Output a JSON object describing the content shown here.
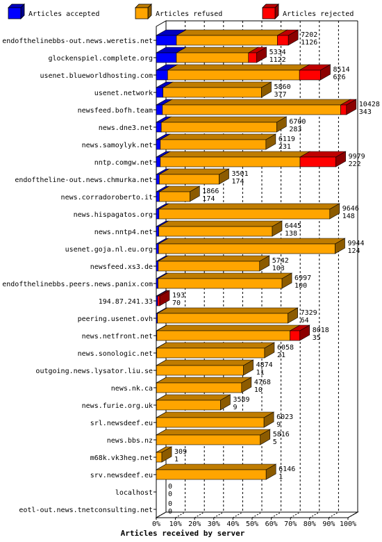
{
  "chart_data": {
    "type": "bar",
    "orientation": "horizontal",
    "stacked": true,
    "three_d": true,
    "xlabel": "Articles received by server",
    "xlim": [
      0,
      100
    ],
    "x_unit": "percent",
    "grid": "vertical dashed",
    "legend_position": "top",
    "x_ticks": [
      "0%",
      "10%",
      "20%",
      "30%",
      "40%",
      "50%",
      "60%",
      "70%",
      "80%",
      "90%",
      "100%"
    ],
    "series": [
      {
        "name": "Articles accepted",
        "color": "#0000ff"
      },
      {
        "name": "Articles refused",
        "color": "#ffa500"
      },
      {
        "name": "Articles rejected",
        "color": "#ff0000"
      }
    ],
    "rows": [
      {
        "server": "endofthelinebbs-out.news.weretis.net",
        "total": 7202,
        "accepted": 1126,
        "accepted_pct": 10.5,
        "refused_pct": 52.7,
        "rejected_pct": 5.7
      },
      {
        "server": "glockenspiel.complete.org",
        "total": 5334,
        "accepted": 1122,
        "accepted_pct": 10.5,
        "refused_pct": 37.6,
        "rejected_pct": 4.3
      },
      {
        "server": "usenet.blueworldhosting.com",
        "total": 8514,
        "accepted": 626,
        "accepted_pct": 5.9,
        "refused_pct": 68.8,
        "rejected_pct": 11.0
      },
      {
        "server": "usenet.network",
        "total": 5860,
        "accepted": 377,
        "accepted_pct": 3.5,
        "refused_pct": 51.4,
        "rejected_pct": 0
      },
      {
        "server": "newsfeed.bofh.team",
        "total": 10428,
        "accepted": 343,
        "accepted_pct": 3.2,
        "refused_pct": 93.0,
        "rejected_pct": 3.0
      },
      {
        "server": "news.dne3.net",
        "total": 6700,
        "accepted": 283,
        "accepted_pct": 2.6,
        "refused_pct": 60.2,
        "rejected_pct": 0
      },
      {
        "server": "news.samoylyk.net",
        "total": 6119,
        "accepted": 231,
        "accepted_pct": 2.1,
        "refused_pct": 55.1,
        "rejected_pct": 0
      },
      {
        "server": "nntp.comgw.net",
        "total": 9979,
        "accepted": 222,
        "accepted_pct": 2.1,
        "refused_pct": 72.9,
        "rejected_pct": 18.7
      },
      {
        "server": "endoftheline-out.news.chmurka.net",
        "total": 3501,
        "accepted": 174,
        "accepted_pct": 1.6,
        "refused_pct": 31.2,
        "rejected_pct": 0
      },
      {
        "server": "news.corradoroberto.it",
        "total": 1866,
        "accepted": 174,
        "accepted_pct": 1.6,
        "refused_pct": 15.9,
        "rejected_pct": 0
      },
      {
        "server": "news.hispagatos.org",
        "total": 9646,
        "accepted": 148,
        "accepted_pct": 1.4,
        "refused_pct": 89.1,
        "rejected_pct": 0
      },
      {
        "server": "news.nntp4.net",
        "total": 6445,
        "accepted": 138,
        "accepted_pct": 1.3,
        "refused_pct": 59.2,
        "rejected_pct": 0
      },
      {
        "server": "usenet.goja.nl.eu.org",
        "total": 9944,
        "accepted": 124,
        "accepted_pct": 1.2,
        "refused_pct": 92.1,
        "rejected_pct": 0
      },
      {
        "server": "newsfeed.xs3.de",
        "total": 5742,
        "accepted": 103,
        "accepted_pct": 1.0,
        "refused_pct": 52.9,
        "rejected_pct": 0
      },
      {
        "server": "endofthelinebbs.peers.news.panix.com",
        "total": 6997,
        "accepted": 100,
        "accepted_pct": 0.9,
        "refused_pct": 64.7,
        "rejected_pct": 0
      },
      {
        "server": "194.87.241.33",
        "total": 193,
        "accepted": 70,
        "accepted_pct": 0.7,
        "refused_pct": 0,
        "rejected_pct": 1.1
      },
      {
        "server": "peering.usenet.ovh",
        "total": 7329,
        "accepted": 64,
        "accepted_pct": 0.6,
        "refused_pct": 68.1,
        "rejected_pct": 0
      },
      {
        "server": "news.netfront.net",
        "total": 8018,
        "accepted": 35,
        "accepted_pct": 0.3,
        "refused_pct": 69.5,
        "rejected_pct": 5.1
      },
      {
        "server": "news.sonologic.net",
        "total": 6058,
        "accepted": 21,
        "accepted_pct": 0.2,
        "refused_pct": 56.3,
        "rejected_pct": 0
      },
      {
        "server": "outgoing.news.lysator.liu.se",
        "total": 4874,
        "accepted": 11,
        "accepted_pct": 0.1,
        "refused_pct": 45.4,
        "rejected_pct": 0
      },
      {
        "server": "news.nk.ca",
        "total": 4768,
        "accepted": 10,
        "accepted_pct": 0.1,
        "refused_pct": 44.4,
        "rejected_pct": 0
      },
      {
        "server": "news.furie.org.uk",
        "total": 3589,
        "accepted": 9,
        "accepted_pct": 0.1,
        "refused_pct": 33.4,
        "rejected_pct": 0
      },
      {
        "server": "srl.newsdeef.eu",
        "total": 6023,
        "accepted": 9,
        "accepted_pct": 0.1,
        "refused_pct": 56.1,
        "rejected_pct": 0
      },
      {
        "server": "news.bbs.nz",
        "total": 5816,
        "accepted": 5,
        "accepted_pct": 0.05,
        "refused_pct": 54.2,
        "rejected_pct": 0
      },
      {
        "server": "m68k.vk3heg.net",
        "total": 309,
        "accepted": 1,
        "accepted_pct": 0.01,
        "refused_pct": 2.9,
        "rejected_pct": 0
      },
      {
        "server": "srv.newsdeef.eu",
        "total": 6146,
        "accepted": 1,
        "accepted_pct": 0.01,
        "refused_pct": 57.3,
        "rejected_pct": 0
      },
      {
        "server": "localhost",
        "total": 0,
        "accepted": 0,
        "accepted_pct": 0,
        "refused_pct": 0,
        "rejected_pct": 0
      },
      {
        "server": "eotl-out.news.tnetconsulting.net",
        "total": 0,
        "accepted": 0,
        "accepted_pct": 0,
        "refused_pct": 0,
        "rejected_pct": 0
      }
    ]
  }
}
